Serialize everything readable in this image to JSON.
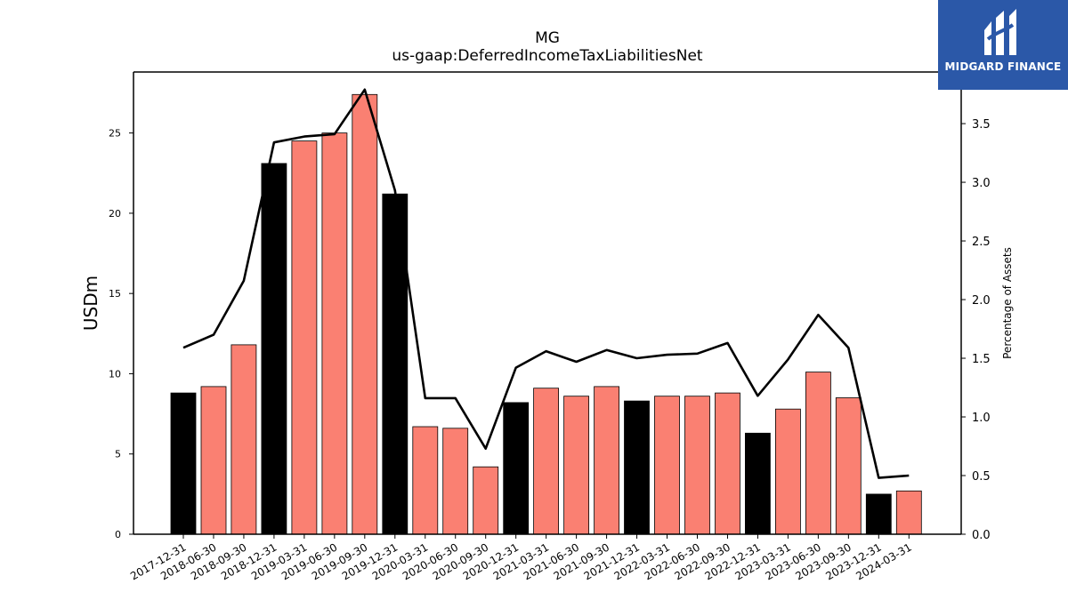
{
  "chart_data": {
    "type": "bar",
    "title": "MG",
    "subtitle": "us-gaap:DeferredIncomeTaxLiabilitiesNet",
    "ylabel": "USDm",
    "y2label": "Percentage of Assets",
    "ylim": [
      0,
      28.8
    ],
    "y2lim": [
      0,
      3.94
    ],
    "yticks": [
      0,
      5,
      10,
      15,
      20,
      25
    ],
    "y2ticks": [
      "0.0",
      "0.5",
      "1.0",
      "1.5",
      "2.0",
      "2.5",
      "3.0",
      "3.5"
    ],
    "categories": [
      "2017-12-31",
      "2018-06-30",
      "2018-09-30",
      "2018-12-31",
      "2019-03-31",
      "2019-06-30",
      "2019-09-30",
      "2019-12-31",
      "2020-03-31",
      "2020-06-30",
      "2020-09-30",
      "2020-12-31",
      "2021-03-31",
      "2021-06-30",
      "2021-09-30",
      "2021-12-31",
      "2022-03-31",
      "2022-06-30",
      "2022-09-30",
      "2022-12-31",
      "2023-03-31",
      "2023-06-30",
      "2023-09-30",
      "2023-12-31",
      "2024-03-31"
    ],
    "values": [
      8.8,
      9.2,
      11.8,
      23.1,
      24.5,
      25.0,
      27.4,
      21.2,
      6.7,
      6.6,
      4.2,
      8.2,
      9.1,
      8.6,
      9.2,
      8.3,
      8.6,
      8.6,
      8.8,
      6.3,
      7.8,
      10.1,
      8.5,
      2.5,
      2.7
    ],
    "annual": [
      true,
      false,
      false,
      true,
      false,
      false,
      false,
      true,
      false,
      false,
      false,
      true,
      false,
      false,
      false,
      true,
      false,
      false,
      false,
      true,
      false,
      false,
      false,
      true,
      false
    ],
    "line_values": [
      1.59,
      1.7,
      2.16,
      3.34,
      3.39,
      3.41,
      3.79,
      2.93,
      1.16,
      1.16,
      0.73,
      1.42,
      1.56,
      1.47,
      1.57,
      1.5,
      1.53,
      1.54,
      1.63,
      1.18,
      1.49,
      1.87,
      1.59,
      0.48,
      0.5
    ],
    "colors": {
      "annual": "#000000",
      "quarterly": "#fa8072",
      "line": "#000000"
    }
  },
  "logo": {
    "text": "MIDGARD FINANCE",
    "icon": "midgard-logo-icon"
  }
}
